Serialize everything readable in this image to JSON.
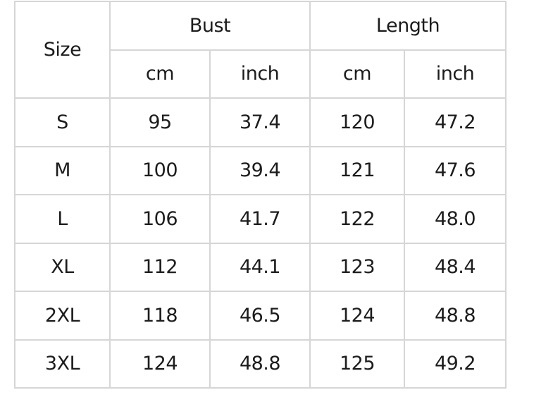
{
  "headers": {
    "size": "Size",
    "bust": "Bust",
    "length": "Length",
    "units": [
      "cm",
      "inch",
      "cm",
      "inch"
    ]
  },
  "rows": [
    [
      "S",
      "95",
      "37.4",
      "120",
      "47.2"
    ],
    [
      "M",
      "100",
      "39.4",
      "121",
      "47.6"
    ],
    [
      "L",
      "106",
      "41.7",
      "122",
      "48.0"
    ],
    [
      "XL",
      "112",
      "44.1",
      "123",
      "48.4"
    ],
    [
      "2XL",
      "118",
      "46.5",
      "124",
      "48.8"
    ],
    [
      "3XL",
      "124",
      "48.8",
      "125",
      "49.2"
    ]
  ]
}
